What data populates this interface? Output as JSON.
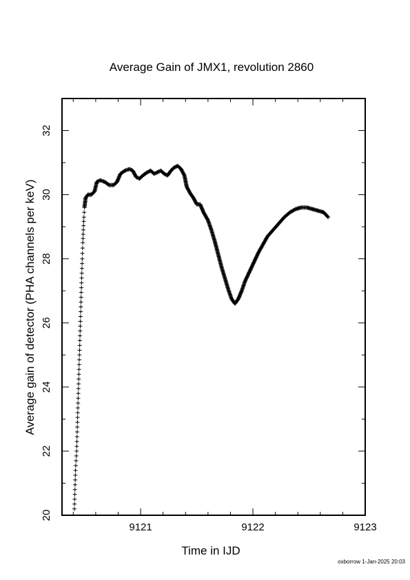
{
  "chart_data": {
    "type": "scatter",
    "title": "Average Gain of JMX1, revolution 2860",
    "xlabel": "Time in IJD",
    "ylabel": "Average gain of detector (PHA channels per keV)",
    "xlim": [
      9120.3,
      9123
    ],
    "ylim": [
      20,
      33
    ],
    "x_ticks": [
      9121,
      9122,
      9123
    ],
    "x_tick_labels": [
      "9121",
      "9122",
      "9123"
    ],
    "y_ticks": [
      20,
      22,
      24,
      26,
      28,
      30,
      32
    ],
    "y_tick_labels": [
      "20",
      "22",
      "24",
      "26",
      "28",
      "30",
      "32"
    ],
    "marker": "plus",
    "grid": false,
    "legend": "none",
    "series": [
      {
        "points": [
          [
            9120.41,
            20.2
          ],
          [
            9120.415,
            20.8
          ],
          [
            9120.42,
            21.4
          ],
          [
            9120.43,
            22.0
          ],
          [
            9120.435,
            22.6
          ],
          [
            9120.44,
            23.2
          ],
          [
            9120.445,
            23.8
          ],
          [
            9120.45,
            24.4
          ],
          [
            9120.455,
            25.0
          ],
          [
            9120.46,
            25.6
          ],
          [
            9120.465,
            26.2
          ],
          [
            9120.47,
            26.8
          ],
          [
            9120.475,
            27.4
          ],
          [
            9120.48,
            28.0
          ],
          [
            9120.485,
            28.5
          ],
          [
            9120.49,
            28.9
          ],
          [
            9120.495,
            29.3
          ],
          [
            9120.5,
            29.6
          ],
          [
            9120.51,
            29.9
          ],
          [
            9120.53,
            30.0
          ],
          [
            9120.56,
            30.0
          ],
          [
            9120.59,
            30.1
          ],
          [
            9120.61,
            30.4
          ],
          [
            9120.64,
            30.45
          ],
          [
            9120.68,
            30.4
          ],
          [
            9120.72,
            30.3
          ],
          [
            9120.76,
            30.3
          ],
          [
            9120.79,
            30.4
          ],
          [
            9120.82,
            30.65
          ],
          [
            9120.86,
            30.75
          ],
          [
            9120.9,
            30.8
          ],
          [
            9120.93,
            30.75
          ],
          [
            9120.96,
            30.55
          ],
          [
            9120.99,
            30.5
          ],
          [
            9121.02,
            30.6
          ],
          [
            9121.06,
            30.7
          ],
          [
            9121.09,
            30.75
          ],
          [
            9121.12,
            30.65
          ],
          [
            9121.15,
            30.7
          ],
          [
            9121.18,
            30.75
          ],
          [
            9121.21,
            30.65
          ],
          [
            9121.24,
            30.6
          ],
          [
            9121.27,
            30.75
          ],
          [
            9121.3,
            30.85
          ],
          [
            9121.33,
            30.9
          ],
          [
            9121.36,
            30.8
          ],
          [
            9121.39,
            30.6
          ],
          [
            9121.41,
            30.25
          ],
          [
            9121.44,
            30.05
          ],
          [
            9121.47,
            29.9
          ],
          [
            9121.5,
            29.7
          ],
          [
            9121.53,
            29.7
          ],
          [
            9121.56,
            29.45
          ],
          [
            9121.6,
            29.2
          ],
          [
            9121.63,
            28.9
          ],
          [
            9121.66,
            28.55
          ],
          [
            9121.69,
            28.15
          ],
          [
            9121.72,
            27.75
          ],
          [
            9121.75,
            27.4
          ],
          [
            9121.78,
            27.05
          ],
          [
            9121.81,
            26.75
          ],
          [
            9121.84,
            26.6
          ],
          [
            9121.87,
            26.75
          ],
          [
            9121.9,
            27.0
          ],
          [
            9121.93,
            27.3
          ],
          [
            9121.97,
            27.6
          ],
          [
            9122.01,
            27.9
          ],
          [
            9122.05,
            28.2
          ],
          [
            9122.09,
            28.45
          ],
          [
            9122.13,
            28.7
          ],
          [
            9122.18,
            28.9
          ],
          [
            9122.23,
            29.1
          ],
          [
            9122.28,
            29.3
          ],
          [
            9122.33,
            29.45
          ],
          [
            9122.38,
            29.55
          ],
          [
            9122.43,
            29.6
          ],
          [
            9122.48,
            29.6
          ],
          [
            9122.53,
            29.55
          ],
          [
            9122.58,
            29.5
          ],
          [
            9122.63,
            29.45
          ],
          [
            9122.67,
            29.3
          ]
        ]
      }
    ]
  },
  "footer": {
    "stamp": "oxborrow  1-Jan-2025 20:03"
  }
}
